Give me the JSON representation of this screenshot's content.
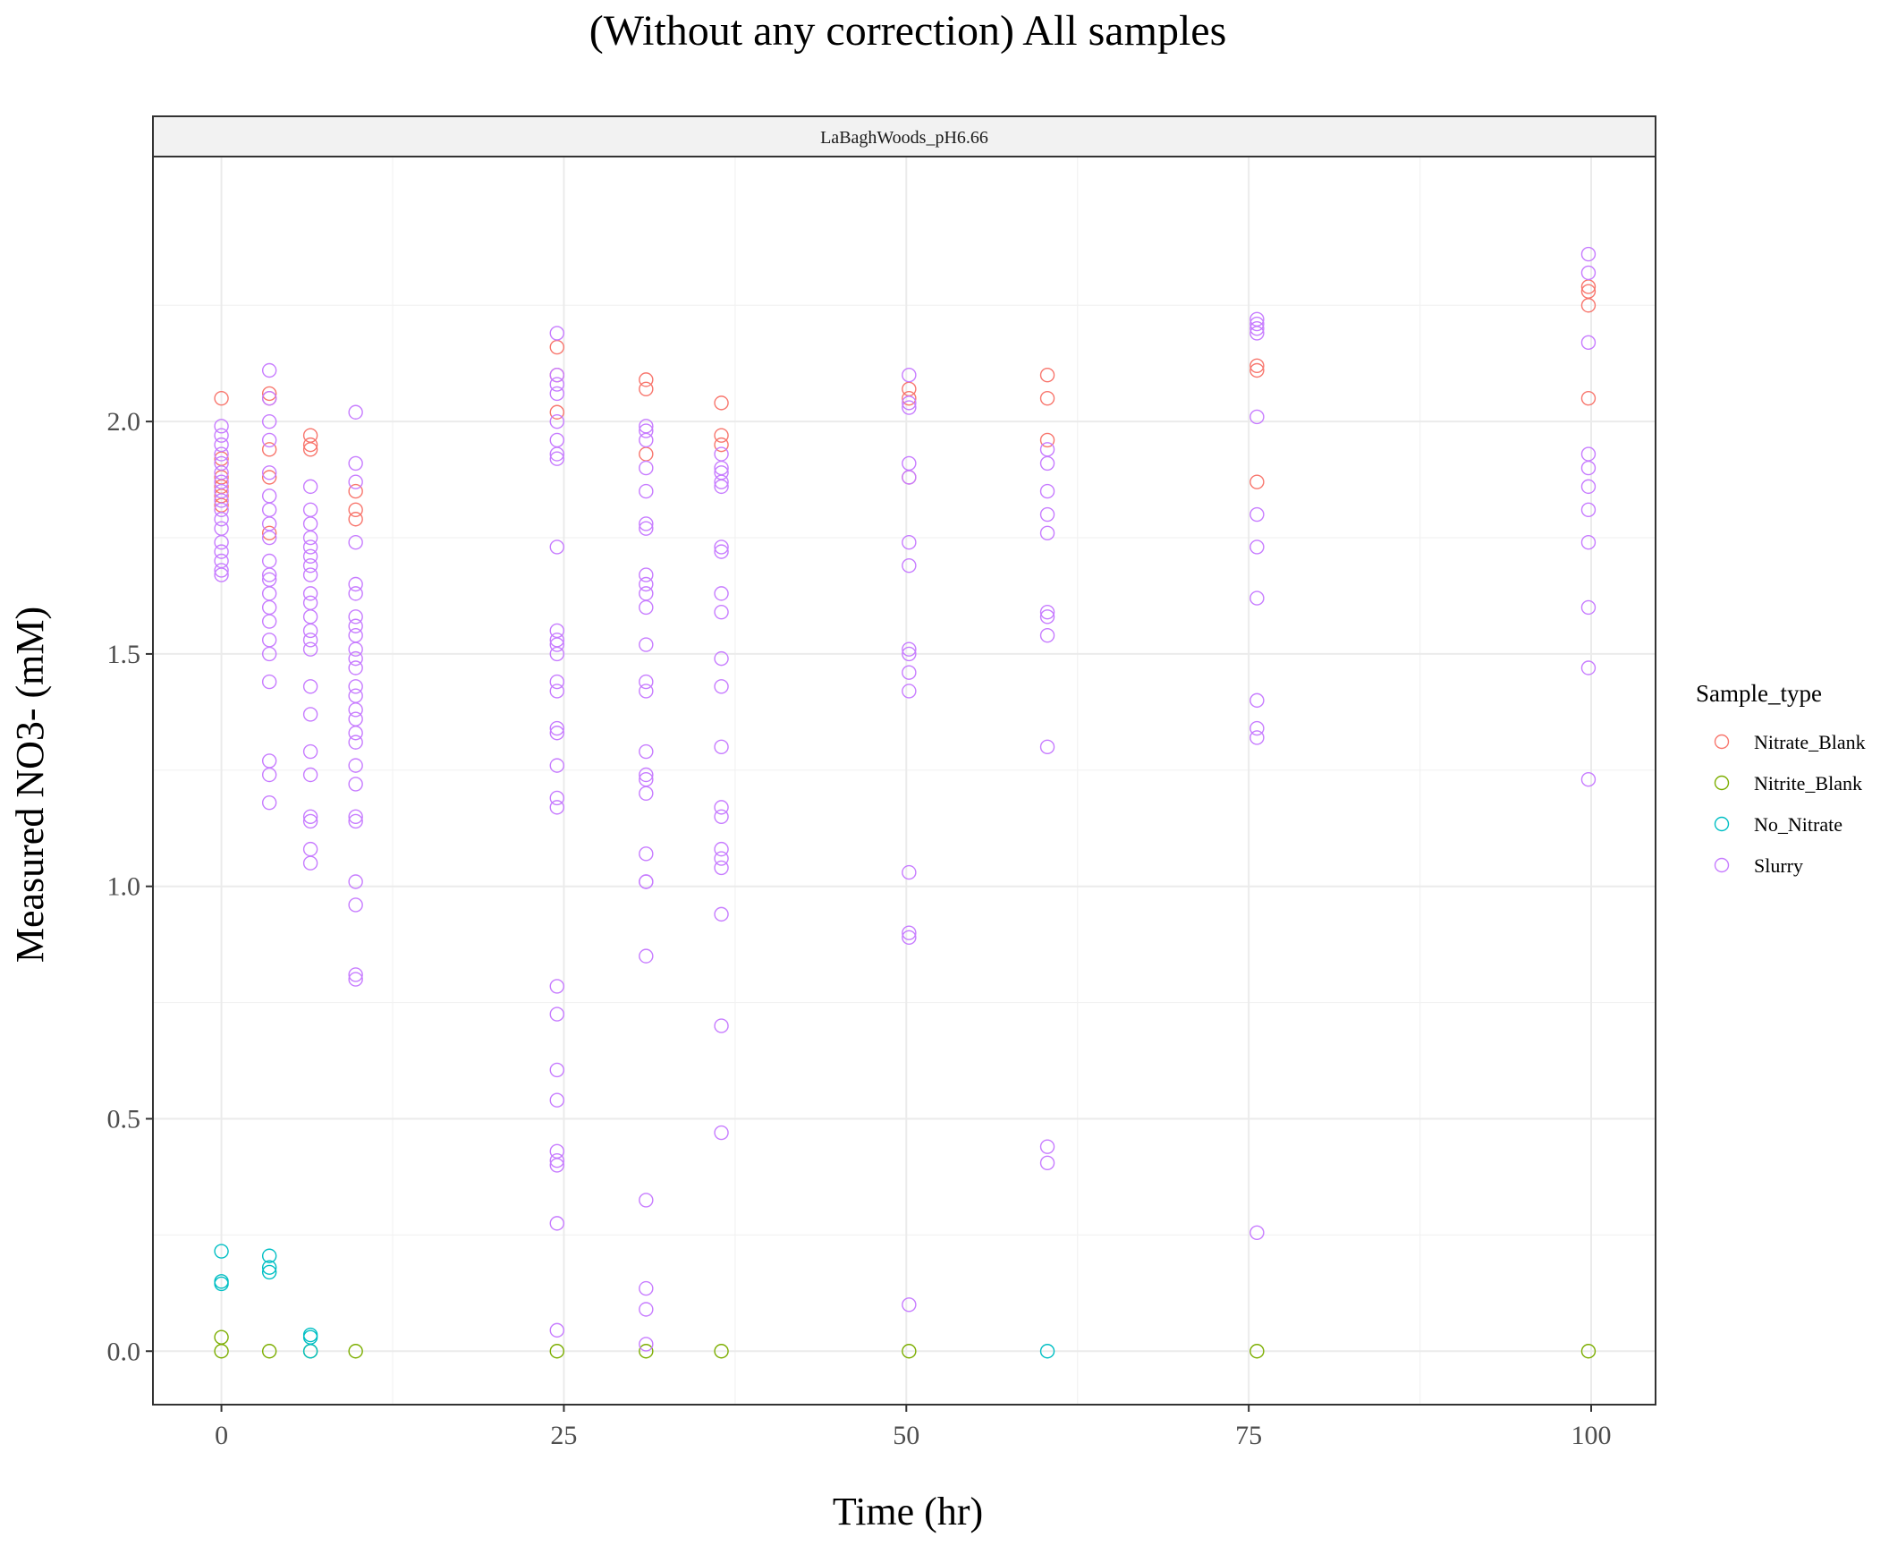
{
  "chart_data": {
    "type": "scatter",
    "title": "(Without any correction) All samples",
    "facet_label": "LaBaghWoods_pH6.66",
    "xlabel": "Time (hr)",
    "ylabel": "Measured NO3- (mM)",
    "xlim": [
      -5,
      104.7
    ],
    "ylim": [
      -0.115,
      2.57
    ],
    "xticks": [
      0,
      25,
      50,
      75,
      100
    ],
    "xtick_labels": [
      "0",
      "25",
      "50",
      "75",
      "100"
    ],
    "yticks": [
      0,
      0.5,
      1,
      1.5,
      2
    ],
    "ytick_labels": [
      "0.0",
      "0.5",
      "1.0",
      "1.5",
      "2.0"
    ],
    "x_minor_breaks": [
      12.5,
      37.5,
      62.5,
      87.5
    ],
    "y_minor_breaks": [
      0.25,
      0.75,
      1.25,
      1.75,
      2.25
    ],
    "grid": true,
    "marker": "open-circle",
    "legend": {
      "title": "Sample_type",
      "position": "right"
    },
    "series": [
      {
        "name": "Nitrate_Blank",
        "color": "#F8766D",
        "points": [
          [
            0,
            2.05
          ],
          [
            0,
            1.92
          ],
          [
            0,
            1.88
          ],
          [
            0,
            1.86
          ],
          [
            0,
            1.84
          ],
          [
            0,
            1.82
          ],
          [
            3.5,
            2.06
          ],
          [
            3.5,
            2.05
          ],
          [
            3.5,
            1.94
          ],
          [
            3.5,
            1.88
          ],
          [
            3.5,
            1.76
          ],
          [
            6.5,
            1.97
          ],
          [
            6.5,
            1.95
          ],
          [
            6.5,
            1.94
          ],
          [
            9.8,
            1.85
          ],
          [
            9.8,
            1.81
          ],
          [
            9.8,
            1.79
          ],
          [
            24.5,
            2.16
          ],
          [
            24.5,
            2.1
          ],
          [
            24.5,
            2.02
          ],
          [
            31,
            2.09
          ],
          [
            31,
            2.07
          ],
          [
            31,
            1.93
          ],
          [
            36.5,
            2.04
          ],
          [
            36.5,
            1.97
          ],
          [
            36.5,
            1.95
          ],
          [
            50.2,
            2.07
          ],
          [
            50.2,
            2.05
          ],
          [
            50.2,
            1.88
          ],
          [
            60.3,
            2.1
          ],
          [
            60.3,
            2.05
          ],
          [
            60.3,
            1.96
          ],
          [
            75.6,
            2.12
          ],
          [
            75.6,
            2.11
          ],
          [
            75.6,
            1.87
          ],
          [
            99.8,
            2.29
          ],
          [
            99.8,
            2.28
          ],
          [
            99.8,
            2.25
          ],
          [
            99.8,
            2.05
          ]
        ]
      },
      {
        "name": "Nitrite_Blank",
        "color": "#7CAE00",
        "points": [
          [
            0,
            0.03
          ],
          [
            0,
            0.0
          ],
          [
            3.5,
            0.0
          ],
          [
            6.5,
            0.0
          ],
          [
            9.8,
            0.0
          ],
          [
            24.5,
            0.0
          ],
          [
            31,
            0.0
          ],
          [
            36.5,
            0.0
          ],
          [
            50.2,
            0.0
          ],
          [
            75.6,
            0.0
          ],
          [
            99.8,
            0.0
          ]
        ]
      },
      {
        "name": "No_Nitrate",
        "color": "#00BFC4",
        "points": [
          [
            0,
            0.215
          ],
          [
            0,
            0.15
          ],
          [
            0,
            0.145
          ],
          [
            3.5,
            0.205
          ],
          [
            3.5,
            0.18
          ],
          [
            3.5,
            0.17
          ],
          [
            6.5,
            0.035
          ],
          [
            6.5,
            0.03
          ],
          [
            6.5,
            0.0
          ],
          [
            60.3,
            0.0
          ]
        ]
      },
      {
        "name": "Slurry",
        "color": "#C77CFF",
        "points": [
          [
            0,
            1.99
          ],
          [
            0,
            1.97
          ],
          [
            0,
            1.95
          ],
          [
            0,
            1.93
          ],
          [
            0,
            1.91
          ],
          [
            0,
            1.89
          ],
          [
            0,
            1.87
          ],
          [
            0,
            1.85
          ],
          [
            0,
            1.83
          ],
          [
            0,
            1.81
          ],
          [
            0,
            1.79
          ],
          [
            0,
            1.77
          ],
          [
            0,
            1.74
          ],
          [
            0,
            1.72
          ],
          [
            0,
            1.7
          ],
          [
            0,
            1.68
          ],
          [
            0,
            1.67
          ],
          [
            3.5,
            2.11
          ],
          [
            3.5,
            2.05
          ],
          [
            3.5,
            2.0
          ],
          [
            3.5,
            1.96
          ],
          [
            3.5,
            1.89
          ],
          [
            3.5,
            1.84
          ],
          [
            3.5,
            1.81
          ],
          [
            3.5,
            1.78
          ],
          [
            3.5,
            1.75
          ],
          [
            3.5,
            1.7
          ],
          [
            3.5,
            1.67
          ],
          [
            3.5,
            1.66
          ],
          [
            3.5,
            1.63
          ],
          [
            3.5,
            1.6
          ],
          [
            3.5,
            1.57
          ],
          [
            3.5,
            1.53
          ],
          [
            3.5,
            1.5
          ],
          [
            3.5,
            1.44
          ],
          [
            3.5,
            1.27
          ],
          [
            3.5,
            1.24
          ],
          [
            3.5,
            1.18
          ],
          [
            6.5,
            1.86
          ],
          [
            6.5,
            1.81
          ],
          [
            6.5,
            1.78
          ],
          [
            6.5,
            1.75
          ],
          [
            6.5,
            1.73
          ],
          [
            6.5,
            1.71
          ],
          [
            6.5,
            1.69
          ],
          [
            6.5,
            1.67
          ],
          [
            6.5,
            1.63
          ],
          [
            6.5,
            1.61
          ],
          [
            6.5,
            1.58
          ],
          [
            6.5,
            1.55
          ],
          [
            6.5,
            1.53
          ],
          [
            6.5,
            1.51
          ],
          [
            6.5,
            1.43
          ],
          [
            6.5,
            1.37
          ],
          [
            6.5,
            1.29
          ],
          [
            6.5,
            1.24
          ],
          [
            6.5,
            1.15
          ],
          [
            6.5,
            1.14
          ],
          [
            6.5,
            1.08
          ],
          [
            6.5,
            1.05
          ],
          [
            9.8,
            2.02
          ],
          [
            9.8,
            1.91
          ],
          [
            9.8,
            1.87
          ],
          [
            9.8,
            1.74
          ],
          [
            9.8,
            1.65
          ],
          [
            9.8,
            1.63
          ],
          [
            9.8,
            1.58
          ],
          [
            9.8,
            1.56
          ],
          [
            9.8,
            1.54
          ],
          [
            9.8,
            1.51
          ],
          [
            9.8,
            1.49
          ],
          [
            9.8,
            1.47
          ],
          [
            9.8,
            1.43
          ],
          [
            9.8,
            1.41
          ],
          [
            9.8,
            1.38
          ],
          [
            9.8,
            1.36
          ],
          [
            9.8,
            1.33
          ],
          [
            9.8,
            1.31
          ],
          [
            9.8,
            1.26
          ],
          [
            9.8,
            1.22
          ],
          [
            9.8,
            1.15
          ],
          [
            9.8,
            1.14
          ],
          [
            9.8,
            1.01
          ],
          [
            9.8,
            0.96
          ],
          [
            9.8,
            0.81
          ],
          [
            9.8,
            0.8
          ],
          [
            24.5,
            2.19
          ],
          [
            24.5,
            2.1
          ],
          [
            24.5,
            2.08
          ],
          [
            24.5,
            2.06
          ],
          [
            24.5,
            2.0
          ],
          [
            24.5,
            1.96
          ],
          [
            24.5,
            1.93
          ],
          [
            24.5,
            1.92
          ],
          [
            24.5,
            1.73
          ],
          [
            24.5,
            1.55
          ],
          [
            24.5,
            1.53
          ],
          [
            24.5,
            1.52
          ],
          [
            24.5,
            1.5
          ],
          [
            24.5,
            1.44
          ],
          [
            24.5,
            1.42
          ],
          [
            24.5,
            1.34
          ],
          [
            24.5,
            1.33
          ],
          [
            24.5,
            1.26
          ],
          [
            24.5,
            1.19
          ],
          [
            24.5,
            1.17
          ],
          [
            24.5,
            0.785
          ],
          [
            24.5,
            0.725
          ],
          [
            24.5,
            0.605
          ],
          [
            24.5,
            0.54
          ],
          [
            24.5,
            0.43
          ],
          [
            24.5,
            0.41
          ],
          [
            24.5,
            0.4
          ],
          [
            24.5,
            0.275
          ],
          [
            24.5,
            0.045
          ],
          [
            31,
            1.99
          ],
          [
            31,
            1.98
          ],
          [
            31,
            1.96
          ],
          [
            31,
            1.9
          ],
          [
            31,
            1.85
          ],
          [
            31,
            1.78
          ],
          [
            31,
            1.77
          ],
          [
            31,
            1.67
          ],
          [
            31,
            1.65
          ],
          [
            31,
            1.63
          ],
          [
            31,
            1.6
          ],
          [
            31,
            1.52
          ],
          [
            31,
            1.44
          ],
          [
            31,
            1.42
          ],
          [
            31,
            1.29
          ],
          [
            31,
            1.24
          ],
          [
            31,
            1.23
          ],
          [
            31,
            1.2
          ],
          [
            31,
            1.07
          ],
          [
            31,
            1.01
          ],
          [
            31,
            1.01
          ],
          [
            31,
            0.85
          ],
          [
            31,
            0.325
          ],
          [
            31,
            0.135
          ],
          [
            31,
            0.09
          ],
          [
            31,
            0.015
          ],
          [
            36.5,
            1.93
          ],
          [
            36.5,
            1.9
          ],
          [
            36.5,
            1.89
          ],
          [
            36.5,
            1.87
          ],
          [
            36.5,
            1.86
          ],
          [
            36.5,
            1.73
          ],
          [
            36.5,
            1.72
          ],
          [
            36.5,
            1.63
          ],
          [
            36.5,
            1.59
          ],
          [
            36.5,
            1.49
          ],
          [
            36.5,
            1.43
          ],
          [
            36.5,
            1.3
          ],
          [
            36.5,
            1.17
          ],
          [
            36.5,
            1.15
          ],
          [
            36.5,
            1.08
          ],
          [
            36.5,
            1.06
          ],
          [
            36.5,
            1.04
          ],
          [
            36.5,
            0.94
          ],
          [
            36.5,
            0.7
          ],
          [
            36.5,
            0.47
          ],
          [
            50.2,
            2.1
          ],
          [
            50.2,
            2.04
          ],
          [
            50.2,
            2.03
          ],
          [
            50.2,
            1.91
          ],
          [
            50.2,
            1.88
          ],
          [
            50.2,
            1.74
          ],
          [
            50.2,
            1.69
          ],
          [
            50.2,
            1.51
          ],
          [
            50.2,
            1.5
          ],
          [
            50.2,
            1.46
          ],
          [
            50.2,
            1.42
          ],
          [
            50.2,
            1.03
          ],
          [
            50.2,
            0.9
          ],
          [
            50.2,
            0.89
          ],
          [
            50.2,
            0.1
          ],
          [
            60.3,
            1.94
          ],
          [
            60.3,
            1.91
          ],
          [
            60.3,
            1.85
          ],
          [
            60.3,
            1.8
          ],
          [
            60.3,
            1.76
          ],
          [
            60.3,
            1.59
          ],
          [
            60.3,
            1.58
          ],
          [
            60.3,
            1.54
          ],
          [
            60.3,
            1.3
          ],
          [
            60.3,
            0.44
          ],
          [
            60.3,
            0.405
          ],
          [
            75.6,
            2.22
          ],
          [
            75.6,
            2.21
          ],
          [
            75.6,
            2.2
          ],
          [
            75.6,
            2.19
          ],
          [
            75.6,
            2.01
          ],
          [
            75.6,
            1.8
          ],
          [
            75.6,
            1.73
          ],
          [
            75.6,
            1.62
          ],
          [
            75.6,
            1.4
          ],
          [
            75.6,
            1.34
          ],
          [
            75.6,
            1.32
          ],
          [
            75.6,
            0.255
          ],
          [
            99.8,
            2.36
          ],
          [
            99.8,
            2.32
          ],
          [
            99.8,
            2.17
          ],
          [
            99.8,
            1.93
          ],
          [
            99.8,
            1.9
          ],
          [
            99.8,
            1.86
          ],
          [
            99.8,
            1.81
          ],
          [
            99.8,
            1.74
          ],
          [
            99.8,
            1.6
          ],
          [
            99.8,
            1.47
          ],
          [
            99.8,
            1.23
          ]
        ]
      }
    ]
  }
}
